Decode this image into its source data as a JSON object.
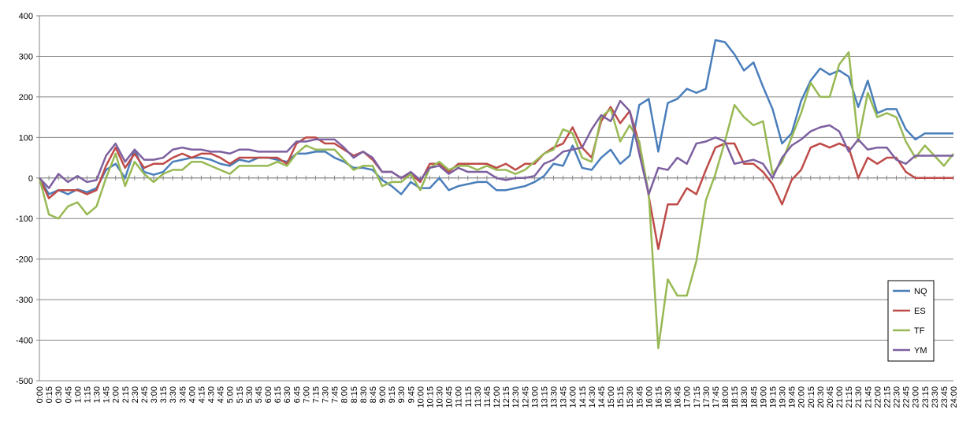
{
  "chart_data": {
    "type": "line",
    "categories": [
      "0:00",
      "0:15",
      "0:30",
      "0:45",
      "1:00",
      "1:15",
      "1:30",
      "1:45",
      "2:00",
      "2:15",
      "2:30",
      "2:45",
      "3:00",
      "3:15",
      "3:30",
      "3:45",
      "4:00",
      "4:15",
      "4:30",
      "4:45",
      "5:00",
      "5:15",
      "5:30",
      "5:45",
      "6:00",
      "6:15",
      "6:30",
      "6:45",
      "7:00",
      "7:15",
      "7:30",
      "7:45",
      "8:00",
      "8:15",
      "8:30",
      "8:45",
      "9:00",
      "9:15",
      "9:30",
      "9:45",
      "10:00",
      "10:15",
      "10:30",
      "10:45",
      "11:00",
      "11:15",
      "11:30",
      "11:45",
      "12:00",
      "12:15",
      "12:30",
      "12:45",
      "13:00",
      "13:15",
      "13:30",
      "13:45",
      "14:00",
      "14:15",
      "14:30",
      "14:45",
      "15:00",
      "15:15",
      "15:30",
      "15:45",
      "16:00",
      "16:15",
      "16:30",
      "16:45",
      "17:00",
      "17:15",
      "17:30",
      "17:45",
      "18:00",
      "18:15",
      "18:30",
      "18:45",
      "19:00",
      "19:15",
      "19:30",
      "19:45",
      "20:00",
      "20:15",
      "20:30",
      "20:45",
      "21:00",
      "21:15",
      "21:30",
      "21:45",
      "22:00",
      "22:15",
      "22:30",
      "22:45",
      "23:00",
      "23:15",
      "23:30",
      "23:45",
      "24:00"
    ],
    "series": [
      {
        "name": "NQ",
        "color": "#4a7ebb",
        "values": [
          0,
          -40,
          -30,
          -40,
          -28,
          -35,
          -25,
          20,
          35,
          0,
          70,
          15,
          8,
          15,
          40,
          45,
          50,
          50,
          45,
          35,
          30,
          45,
          40,
          50,
          50,
          45,
          40,
          60,
          60,
          65,
          65,
          50,
          40,
          25,
          25,
          20,
          -5,
          -20,
          -40,
          -10,
          -25,
          -25,
          0,
          -30,
          -20,
          -15,
          -10,
          -10,
          -30,
          -30,
          -25,
          -20,
          -10,
          5,
          35,
          30,
          80,
          25,
          20,
          50,
          70,
          35,
          55,
          180,
          195,
          65,
          185,
          195,
          220,
          210,
          220,
          340,
          335,
          305,
          265,
          285,
          225,
          170,
          85,
          110,
          190,
          240,
          270,
          255,
          265,
          250,
          175,
          240,
          160,
          170,
          170,
          120,
          95,
          110,
          110,
          110,
          110
        ]
      },
      {
        "name": "ES",
        "color": "#be4b48",
        "values": [
          0,
          -50,
          -30,
          -30,
          -30,
          -40,
          -30,
          30,
          75,
          25,
          60,
          25,
          35,
          35,
          50,
          60,
          50,
          60,
          60,
          50,
          35,
          50,
          50,
          50,
          50,
          50,
          35,
          85,
          100,
          100,
          85,
          85,
          70,
          55,
          65,
          45,
          15,
          15,
          0,
          10,
          -10,
          35,
          35,
          15,
          35,
          35,
          35,
          35,
          25,
          35,
          20,
          35,
          35,
          60,
          75,
          85,
          125,
          75,
          50,
          140,
          175,
          135,
          165,
          85,
          -45,
          -175,
          -65,
          -65,
          -25,
          -40,
          20,
          75,
          85,
          85,
          35,
          35,
          15,
          -15,
          -65,
          -5,
          20,
          75,
          85,
          75,
          85,
          75,
          0,
          50,
          35,
          50,
          50,
          15,
          0,
          0,
          0,
          0,
          0
        ]
      },
      {
        "name": "TF",
        "color": "#98b954",
        "values": [
          0,
          -90,
          -100,
          -70,
          -60,
          -90,
          -70,
          0,
          60,
          -20,
          40,
          10,
          -10,
          10,
          20,
          20,
          40,
          40,
          30,
          20,
          10,
          30,
          30,
          30,
          30,
          40,
          30,
          60,
          80,
          70,
          70,
          70,
          45,
          20,
          30,
          30,
          -20,
          -10,
          -10,
          10,
          -30,
          25,
          40,
          20,
          30,
          30,
          20,
          30,
          20,
          20,
          10,
          20,
          40,
          60,
          70,
          120,
          110,
          50,
          40,
          150,
          170,
          90,
          130,
          90,
          -40,
          -420,
          -250,
          -290,
          -290,
          -205,
          -55,
          10,
          90,
          180,
          150,
          130,
          140,
          10,
          40,
          100,
          160,
          235,
          200,
          200,
          280,
          310,
          90,
          210,
          150,
          160,
          150,
          90,
          50,
          80,
          55,
          30,
          60
        ]
      },
      {
        "name": "YM",
        "color": "#7d60a0",
        "values": [
          0,
          -25,
          10,
          -10,
          5,
          -10,
          -5,
          55,
          85,
          40,
          70,
          45,
          45,
          50,
          70,
          75,
          70,
          70,
          65,
          65,
          60,
          70,
          70,
          65,
          65,
          65,
          65,
          90,
          90,
          95,
          95,
          95,
          75,
          50,
          65,
          50,
          15,
          15,
          0,
          15,
          -5,
          25,
          30,
          10,
          25,
          15,
          15,
          15,
          0,
          -5,
          0,
          0,
          5,
          35,
          45,
          65,
          70,
          75,
          120,
          155,
          140,
          190,
          165,
          60,
          -40,
          25,
          20,
          50,
          35,
          85,
          90,
          100,
          90,
          35,
          40,
          45,
          35,
          0,
          50,
          80,
          95,
          115,
          125,
          130,
          115,
          65,
          95,
          70,
          75,
          75,
          45,
          35,
          55,
          55,
          55,
          55,
          55
        ]
      }
    ],
    "ylim": [
      -500,
      400
    ],
    "yticks": [
      -500,
      -400,
      -300,
      -200,
      -100,
      0,
      100,
      200,
      300,
      400
    ],
    "grid": true,
    "legend": "right"
  }
}
